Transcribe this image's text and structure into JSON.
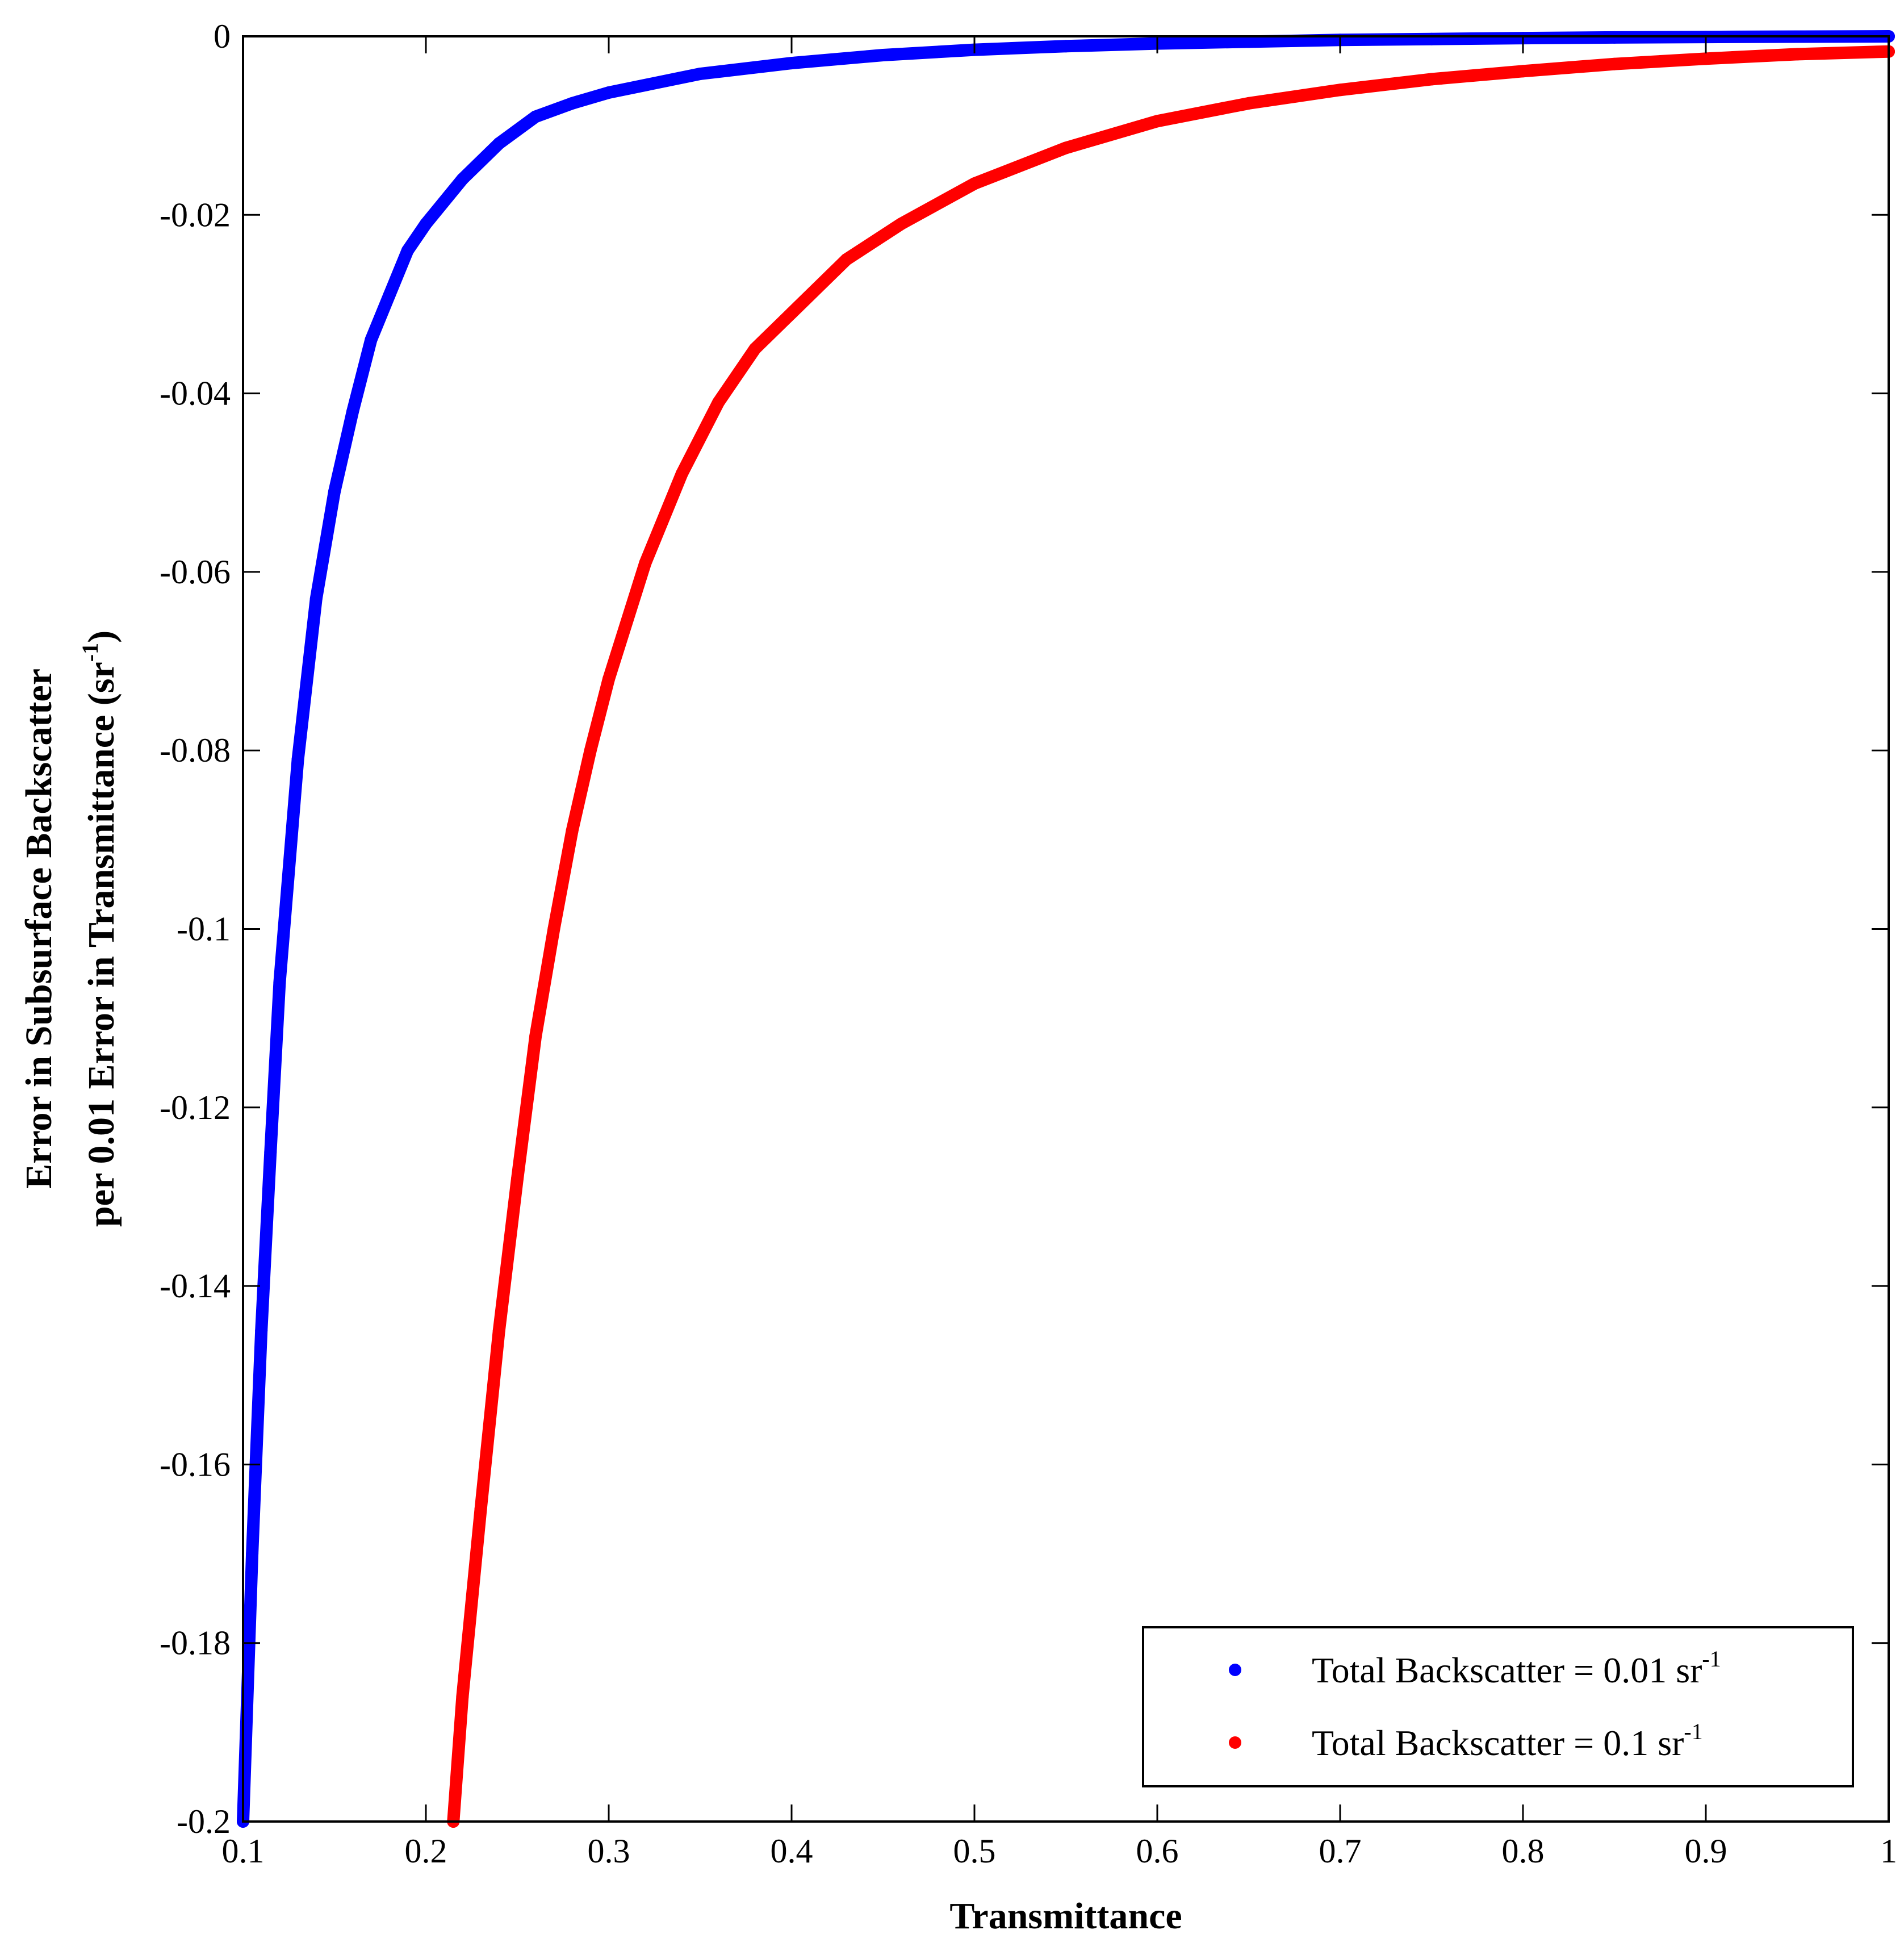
{
  "chart_data": {
    "type": "scatter",
    "xlabel": "Transmittance",
    "ylabel_line1": "Error in Subsurface Backscatter",
    "ylabel_line2_main": "per 0.01 Error in Transmittance (sr",
    "ylabel_line2_sup": "-1",
    "ylabel_line2_end": ")",
    "xlim": [
      0.1,
      1
    ],
    "ylim": [
      -0.2,
      0
    ],
    "x_ticks": [
      "0.1",
      "0.2",
      "0.3",
      "0.4",
      "0.5",
      "0.6",
      "0.7",
      "0.8",
      "0.9",
      "1"
    ],
    "y_ticks": [
      "0",
      "-0.02",
      "-0.04",
      "-0.06",
      "-0.08",
      "-0.1",
      "-0.12",
      "-0.14",
      "-0.16",
      "-0.18",
      "-0.2"
    ],
    "grid": false,
    "legend_position": "bottom-right",
    "series": [
      {
        "name": "Total Backscatter = 0.01 sr",
        "name_sup": "-1",
        "color": "#0000ff",
        "x": [
          0.1,
          0.105,
          0.11,
          0.115,
          0.12,
          0.13,
          0.14,
          0.15,
          0.16,
          0.17,
          0.18,
          0.19,
          0.2,
          0.22,
          0.24,
          0.26,
          0.28,
          0.3,
          0.35,
          0.4,
          0.45,
          0.5,
          0.55,
          0.6,
          0.65,
          0.7,
          0.75,
          0.8,
          0.85,
          0.9,
          0.95,
          1.0
        ],
        "y": [
          -0.2,
          -0.17,
          -0.145,
          -0.125,
          -0.106,
          -0.081,
          -0.063,
          -0.051,
          -0.042,
          -0.034,
          -0.029,
          -0.024,
          -0.021,
          -0.016,
          -0.012,
          -0.009,
          -0.0075,
          -0.0063,
          -0.0042,
          -0.003,
          -0.0021,
          -0.0015,
          -0.0011,
          -0.0008,
          -0.0006,
          -0.0004,
          -0.0003,
          -0.0002,
          -0.00012,
          -7e-05,
          -3e-05,
          0.0
        ]
      },
      {
        "name": "Total Backscatter = 0.1 sr",
        "name_sup": "-1",
        "color": "#ff0000",
        "x": [
          0.215,
          0.22,
          0.23,
          0.24,
          0.25,
          0.26,
          0.27,
          0.28,
          0.29,
          0.3,
          0.32,
          0.34,
          0.36,
          0.38,
          0.4,
          0.43,
          0.46,
          0.5,
          0.55,
          0.6,
          0.65,
          0.7,
          0.75,
          0.8,
          0.85,
          0.9,
          0.95,
          1.0
        ],
        "y": [
          -0.2,
          -0.186,
          -0.165,
          -0.145,
          -0.128,
          -0.112,
          -0.1,
          -0.089,
          -0.08,
          -0.072,
          -0.059,
          -0.049,
          -0.041,
          -0.035,
          -0.031,
          -0.025,
          -0.021,
          -0.0165,
          -0.0125,
          -0.0095,
          -0.0075,
          -0.006,
          -0.0048,
          -0.0039,
          -0.0031,
          -0.0025,
          -0.002,
          -0.0017
        ]
      }
    ]
  }
}
